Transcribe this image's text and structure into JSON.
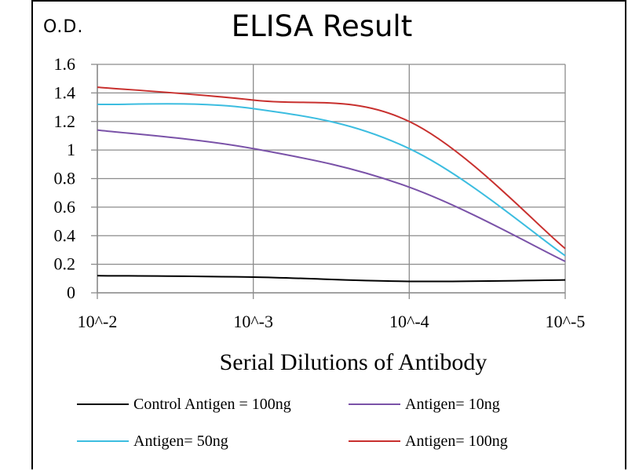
{
  "ylabel": "O.D.",
  "title": "ELISA Result",
  "xlabel": "Serial Dilutions of Antibody",
  "chart_data": {
    "type": "line",
    "title": "ELISA Result",
    "ylabel": "O.D.",
    "xlabel": "Serial Dilutions of Antibody",
    "categories": [
      "10^-2",
      "10^-3",
      "10^-4",
      "10^-5"
    ],
    "ylim": [
      0,
      1.6
    ],
    "yticks": [
      "0",
      "0.2",
      "0.4",
      "0.6",
      "0.8",
      "1",
      "1.2",
      "1.4",
      "1.6"
    ],
    "grid": true,
    "legend_position": "bottom",
    "series": [
      {
        "name": "Control Antigen = 100ng",
        "color": "#000000",
        "values": [
          0.12,
          0.11,
          0.08,
          0.09
        ]
      },
      {
        "name": "Antigen= 10ng",
        "color": "#7a52a8",
        "values": [
          1.14,
          1.01,
          0.74,
          0.22
        ]
      },
      {
        "name": "Antigen= 50ng",
        "color": "#3cbde0",
        "values": [
          1.32,
          1.29,
          1.01,
          0.26
        ]
      },
      {
        "name": "Antigen= 100ng",
        "color": "#c8302e",
        "values": [
          1.44,
          1.35,
          1.2,
          0.31
        ]
      }
    ]
  }
}
